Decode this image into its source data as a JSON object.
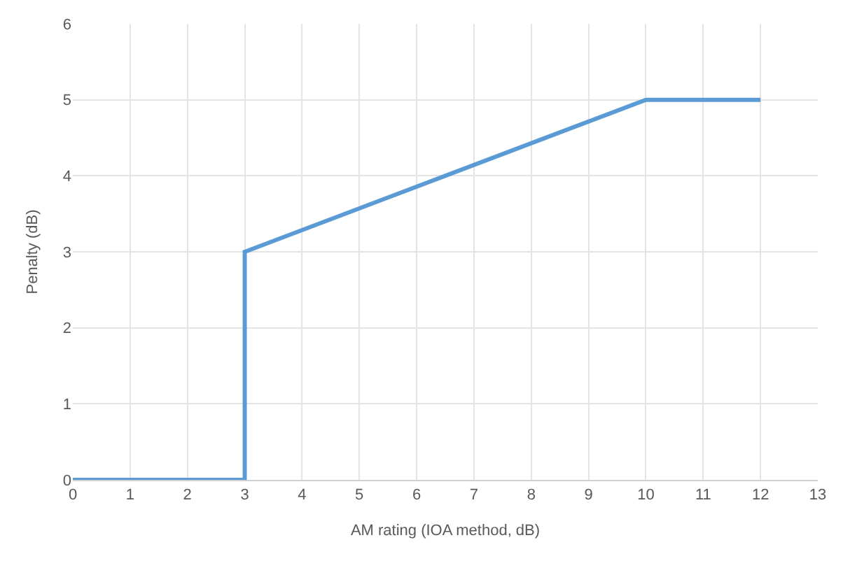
{
  "chart_data": {
    "type": "line",
    "xlabel": "AM rating (IOA method, dB)",
    "ylabel": "Penalty (dB)",
    "x": [
      0,
      3,
      3,
      10,
      12
    ],
    "series": [
      {
        "color": "#5b9bd5",
        "values": [
          0,
          0,
          3,
          5,
          5
        ]
      }
    ],
    "xlim": [
      0,
      13
    ],
    "ylim": [
      0,
      6
    ],
    "xticks": [
      0,
      1,
      2,
      3,
      4,
      5,
      6,
      7,
      8,
      9,
      10,
      11,
      12,
      13
    ],
    "yticks": [
      0,
      1,
      2,
      3,
      4,
      5,
      6
    ],
    "grid": true,
    "legend": false,
    "marker": "none",
    "line_style": "solid"
  }
}
